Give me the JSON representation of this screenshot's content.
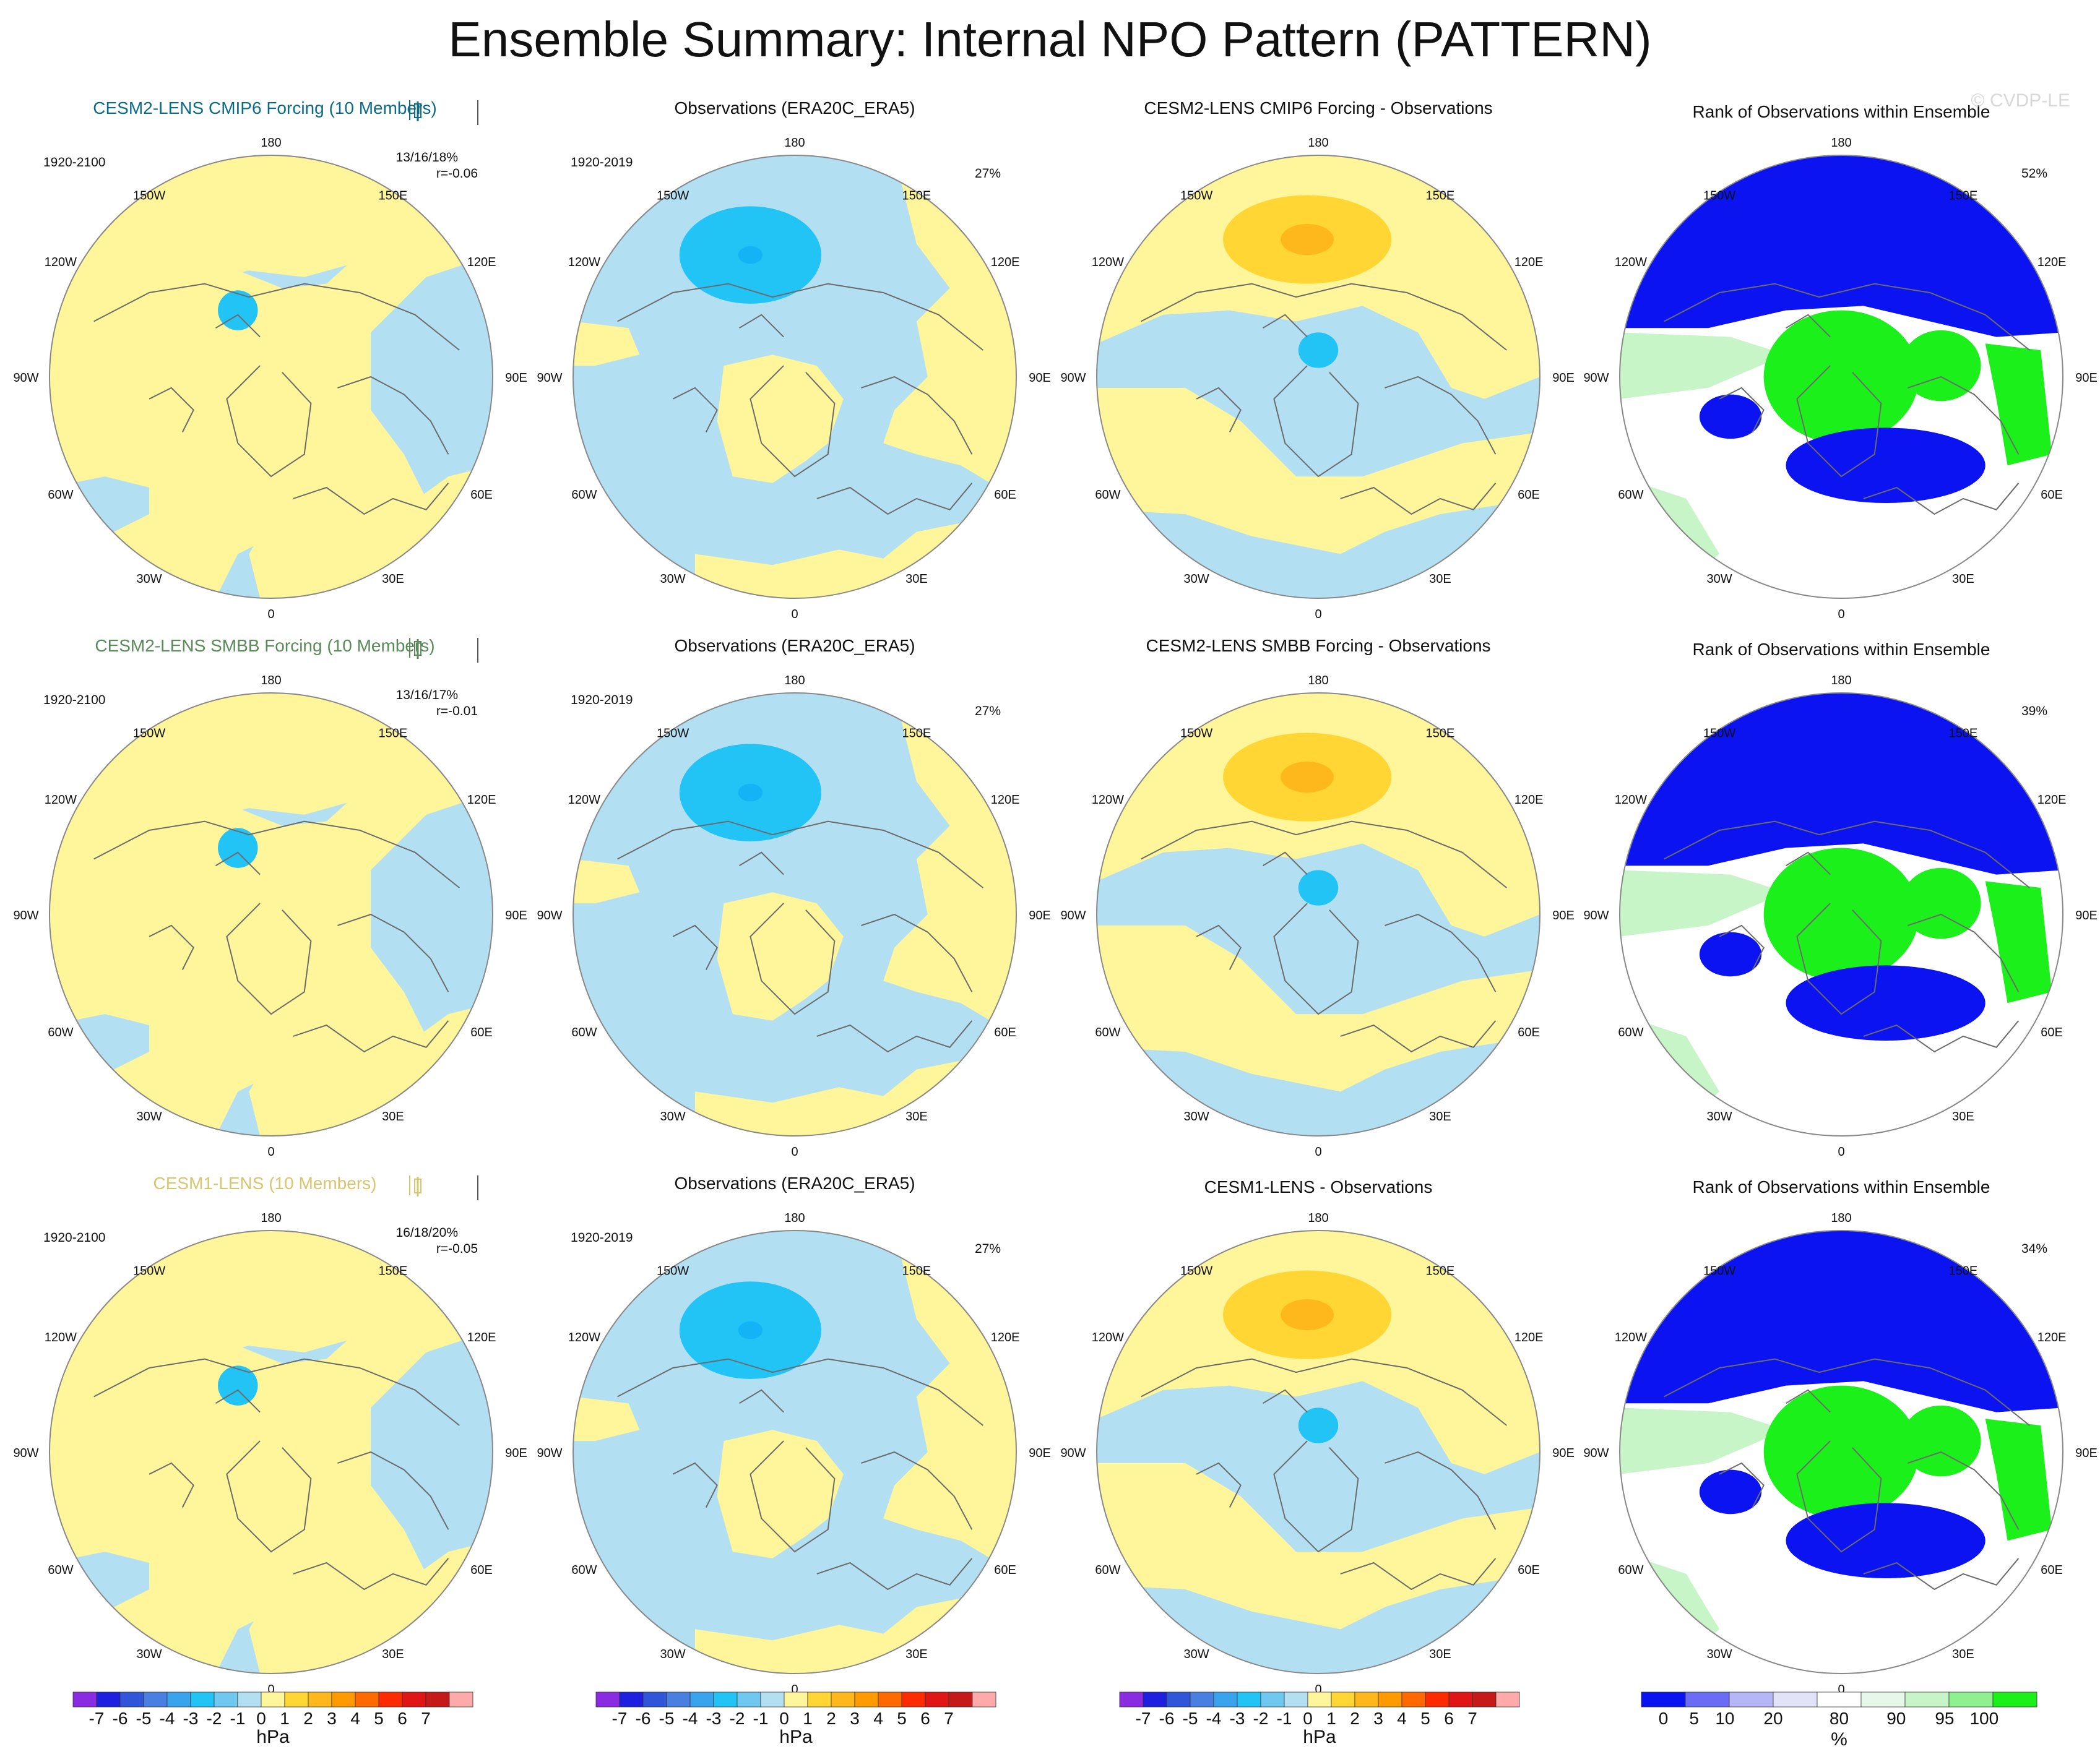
{
  "title": "Ensemble Summary: Internal NPO Pattern (PATTERN)",
  "watermark": "© CVDP-LE",
  "map_labels": {
    "lon_top": "180",
    "lon_bottom": "0",
    "lon_150W": "150W",
    "lon_150E": "150E",
    "lon_120W": "120W",
    "lon_120E": "120E",
    "lon_90W": "90W",
    "lon_90E": "90E",
    "lon_60W": "60W",
    "lon_60E": "60E",
    "lon_30W": "30W",
    "lon_30E": "30E"
  },
  "palettes": {
    "slp_colors": [
      "#8a2be2",
      "#1f1fe0",
      "#2f55d8",
      "#4a7fe2",
      "#39a3ee",
      "#22c3f5",
      "#6fc8ef",
      "#b3dff3",
      "#fff59a",
      "#ffd633",
      "#ffb81c",
      "#ff9a00",
      "#ff6a00",
      "#ff2b00",
      "#e01515",
      "#c41a1a",
      "#ffaaaa"
    ],
    "slp_labels": [
      "-7",
      "-6",
      "-5",
      "-4",
      "-3",
      "-2",
      "-1",
      "0",
      "1",
      "2",
      "3",
      "4",
      "5",
      "6",
      "7"
    ],
    "slp_units": "hPa",
    "rank_colors": [
      "#0b13f0",
      "#6a6cf5",
      "#b5b6f8",
      "#e2e3f8",
      "#ffffff",
      "#e8f8e8",
      "#c8f5c8",
      "#8ef08e",
      "#1bf01b"
    ],
    "rank_labels": [
      "0",
      "5",
      "10",
      "20",
      "80",
      "90",
      "95",
      "100"
    ],
    "rank_units": "%"
  },
  "chart_data": [
    {
      "type": "heatmap",
      "projection": "north-polar-stereographic",
      "variable": "sea level pressure pattern",
      "rows": [
        {
          "model_title": "CESM2-LENS CMIP6 Forcing (10 Members)",
          "model_color": "#0a6b8a",
          "model_period": "1920-2100",
          "model_stats": "13/16/18%",
          "model_r": "r=-0.06",
          "obs_title": "Observations (ERA20C_ERA5)",
          "obs_period": "1920-2019",
          "obs_pct": "27%",
          "diff_title": "CESM2-LENS CMIP6 Forcing - Observations",
          "rank_title": "Rank of Observations within Ensemble",
          "rank_pct": "52%",
          "max_model_anomaly_hPa": -1.5,
          "min_obs_anomaly_hPa": -2.5,
          "max_diff_anomaly_hPa": 3.5
        },
        {
          "model_title": "CESM2-LENS SMBB Forcing (10 Members)",
          "model_color": "#5a8a5a",
          "model_period": "1920-2100",
          "model_stats": "13/16/17%",
          "model_r": "r=-0.01",
          "obs_title": "Observations (ERA20C_ERA5)",
          "obs_period": "1920-2019",
          "obs_pct": "27%",
          "diff_title": "CESM2-LENS SMBB Forcing - Observations",
          "rank_title": "Rank of Observations within Ensemble",
          "rank_pct": "39%",
          "max_model_anomaly_hPa": -1.5,
          "min_obs_anomaly_hPa": -2.5,
          "max_diff_anomaly_hPa": 3.5
        },
        {
          "model_title": "CESM1-LENS (10 Members)",
          "model_color": "#d8c66e",
          "model_period": "1920-2100",
          "model_stats": "16/18/20%",
          "model_r": "r=-0.05",
          "obs_title": "Observations (ERA20C_ERA5)",
          "obs_period": "1920-2019",
          "obs_pct": "27%",
          "diff_title": "CESM1-LENS - Observations",
          "rank_title": "Rank of Observations within Ensemble",
          "rank_pct": "34%",
          "max_model_anomaly_hPa": -1.5,
          "min_obs_anomaly_hPa": -2.5,
          "max_diff_anomaly_hPa": 3.5
        }
      ]
    }
  ]
}
